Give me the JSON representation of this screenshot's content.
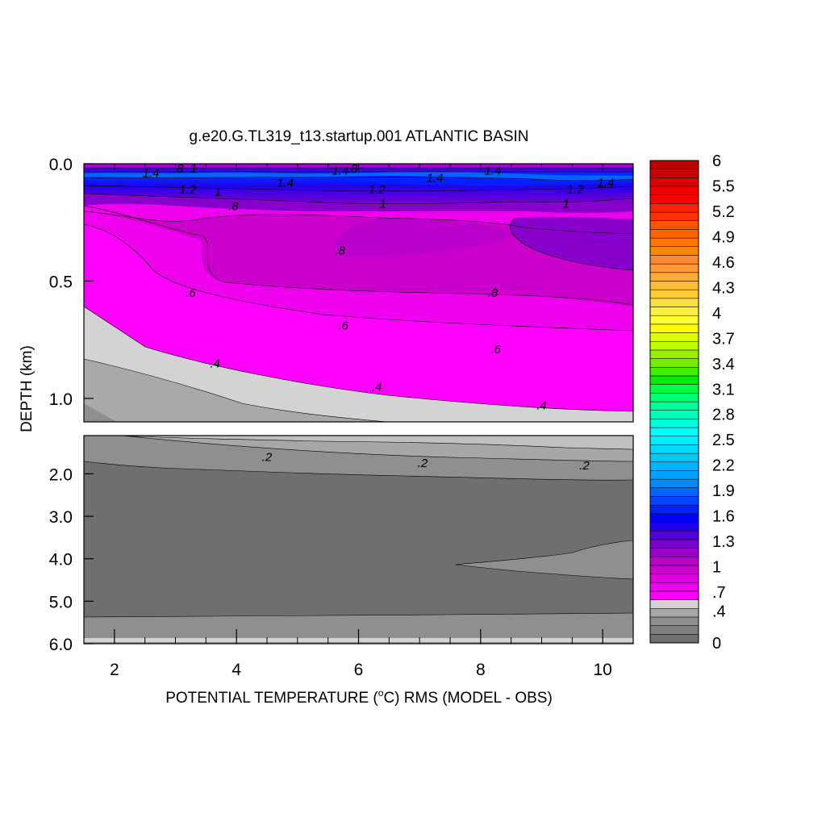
{
  "chart_data": {
    "type": "contour",
    "title": "g.e20.G.TL319_t13.startup.001 ATLANTIC BASIN",
    "xlabel": "POTENTIAL TEMPERATURE (",
    "xlabel_degree": "o",
    "xlabel_rest": "C) RMS (MODEL - OBS)",
    "ylabel": "DEPTH (km)",
    "xlim": [
      1.5,
      10.5
    ],
    "x_ticks": [
      "2",
      "4",
      "6",
      "8",
      "10"
    ],
    "upper_panel": {
      "ylim": [
        0.0,
        1.1
      ],
      "y_ticks": [
        "0.0",
        "0.5",
        "1.0"
      ]
    },
    "lower_panel": {
      "ylim": [
        1.1,
        6.0
      ],
      "y_ticks": [
        "2.0",
        "3.0",
        "4.0",
        "5.0",
        "6.0"
      ]
    },
    "colorbar": {
      "min": 0,
      "max": 6,
      "tick_labels": [
        "0",
        ".4",
        ".7",
        "1",
        "1.3",
        "1.6",
        "1.9",
        "2.2",
        "2.5",
        "2.8",
        "3.1",
        "3.4",
        "3.7",
        "4",
        "4.3",
        "4.6",
        "4.9",
        "5.2",
        "5.5",
        "6"
      ],
      "colors": [
        "#6f6f6f",
        "#7f7f7f",
        "#8f8f8f",
        "#a7a7a7",
        "#d3d3d3",
        "#ff00ff",
        "#ee00ee",
        "#dd00dd",
        "#cc00cc",
        "#bb00cc",
        "#9900cc",
        "#7700cc",
        "#5500dd",
        "#2200ee",
        "#0000ff",
        "#0022ff",
        "#0044ff",
        "#0066ff",
        "#0088ff",
        "#00a0ff",
        "#00b4ff",
        "#00c8ff",
        "#00dcff",
        "#00ecff",
        "#00ffff",
        "#00ffdd",
        "#00ffbb",
        "#00ff99",
        "#00ff77",
        "#00ff44",
        "#00ee00",
        "#44ee00",
        "#77ee00",
        "#99ee00",
        "#bbff00",
        "#ddff00",
        "#ffff00",
        "#ffff33",
        "#ffee44",
        "#ffdd44",
        "#ffcc33",
        "#ffbb33",
        "#ffaa33",
        "#ff9933",
        "#ff8833",
        "#ff8800",
        "#ff7700",
        "#ff6600",
        "#ff5500",
        "#ff3300",
        "#ff2200",
        "#ff0000",
        "#ee0000",
        "#dd0000",
        "#cc0000",
        "#bb0000"
      ]
    },
    "contour_labels": [
      {
        "text": ".2",
        "x": 4.5,
        "depth": 1.6
      },
      {
        "text": ".2",
        "x": 7.05,
        "depth": 1.75
      },
      {
        "text": ".2",
        "x": 9.7,
        "depth": 1.8
      },
      {
        "text": ".4",
        "x": 3.65,
        "depth": 0.85
      },
      {
        "text": ".4",
        "x": 6.3,
        "depth": 0.95
      },
      {
        "text": ".4",
        "x": 9.0,
        "depth": 1.03
      },
      {
        "text": ".6",
        "x": 3.25,
        "depth": 0.55
      },
      {
        "text": ".6",
        "x": 5.75,
        "depth": 0.69
      },
      {
        "text": ".6",
        "x": 8.25,
        "depth": 0.79
      },
      {
        "text": ".8",
        "x": 3.95,
        "depth": 0.18
      },
      {
        "text": ".8",
        "x": 5.7,
        "depth": 0.37
      },
      {
        "text": ".8",
        "x": 8.2,
        "depth": 0.55
      },
      {
        "text": "1",
        "x": 6.4,
        "depth": 0.17
      },
      {
        "text": "1",
        "x": 9.4,
        "depth": 0.17
      },
      {
        "text": "1.2",
        "x": 3.2,
        "depth": 0.11
      },
      {
        "text": "1.2",
        "x": 6.3,
        "depth": 0.11
      },
      {
        "text": "1.2",
        "x": 9.55,
        "depth": 0.11
      },
      {
        "text": "1.4",
        "x": 4.8,
        "depth": 0.08
      },
      {
        "text": "1.4",
        "x": 7.25,
        "depth": 0.06
      },
      {
        "text": "1.4",
        "x": 10.05,
        "depth": 0.08
      },
      {
        "text": "1.4",
        "x": 2.6,
        "depth": 0.04
      },
      {
        "text": "1.4",
        "x": 5.7,
        "depth": 0.03
      },
      {
        "text": "1.4",
        "x": 8.2,
        "depth": 0.03
      },
      {
        "text": ".8",
        "x": 3.05,
        "depth": 0.02
      },
      {
        "text": "1",
        "x": 3.3,
        "depth": 0.02
      },
      {
        "text": ".8",
        "x": 5.9,
        "depth": 0.02
      },
      {
        "text": "1",
        "x": 3.7,
        "depth": 0.12
      }
    ]
  }
}
